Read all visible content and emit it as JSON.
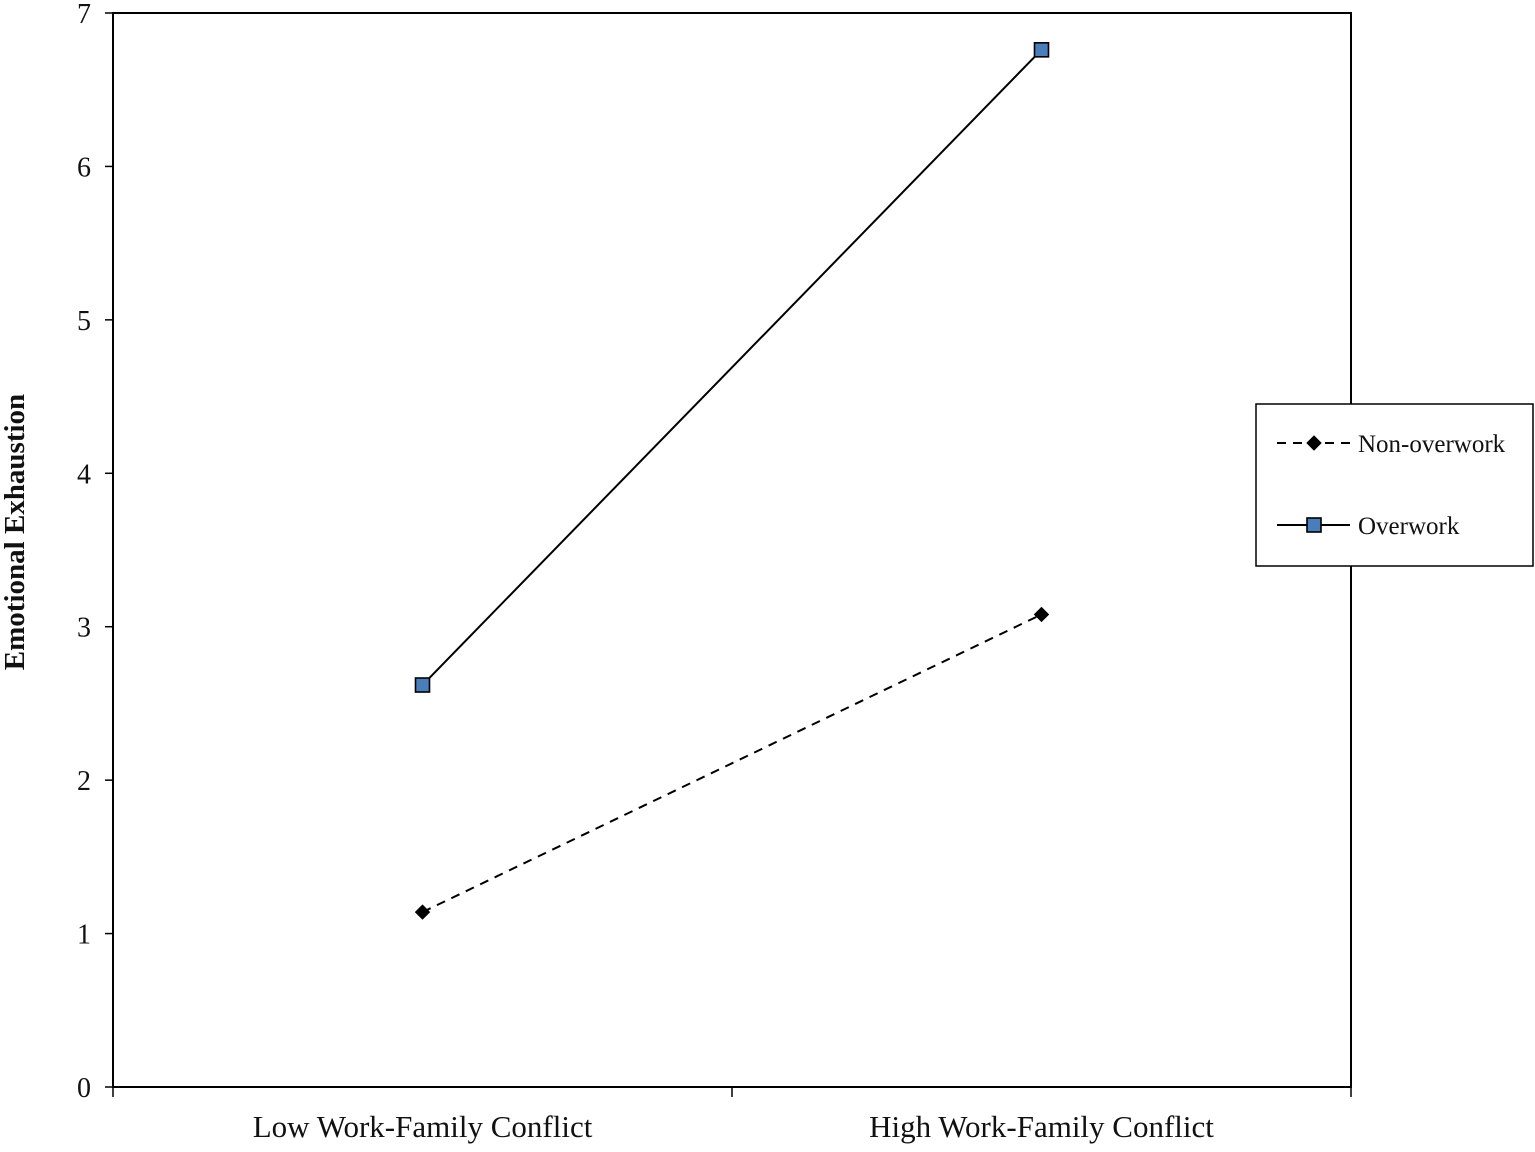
{
  "chart_data": {
    "type": "line",
    "categories": [
      "Low Work-Family Conflict",
      "High Work-Family Conflict"
    ],
    "series": [
      {
        "name": "Non-overwork",
        "values": [
          1.14,
          3.08
        ],
        "line_style": "dashed",
        "marker": "diamond",
        "marker_color": "#000000"
      },
      {
        "name": "Overwork",
        "values": [
          2.62,
          6.76
        ],
        "line_style": "solid",
        "marker": "square",
        "marker_color": "#4a7ebb"
      }
    ],
    "title": "",
    "xlabel": "",
    "ylabel": "Emotional  Exhaustion",
    "ylim": [
      0,
      7
    ],
    "yticks": [
      0,
      1,
      2,
      3,
      4,
      5,
      6,
      7
    ],
    "grid": false,
    "legend_position": "right"
  }
}
